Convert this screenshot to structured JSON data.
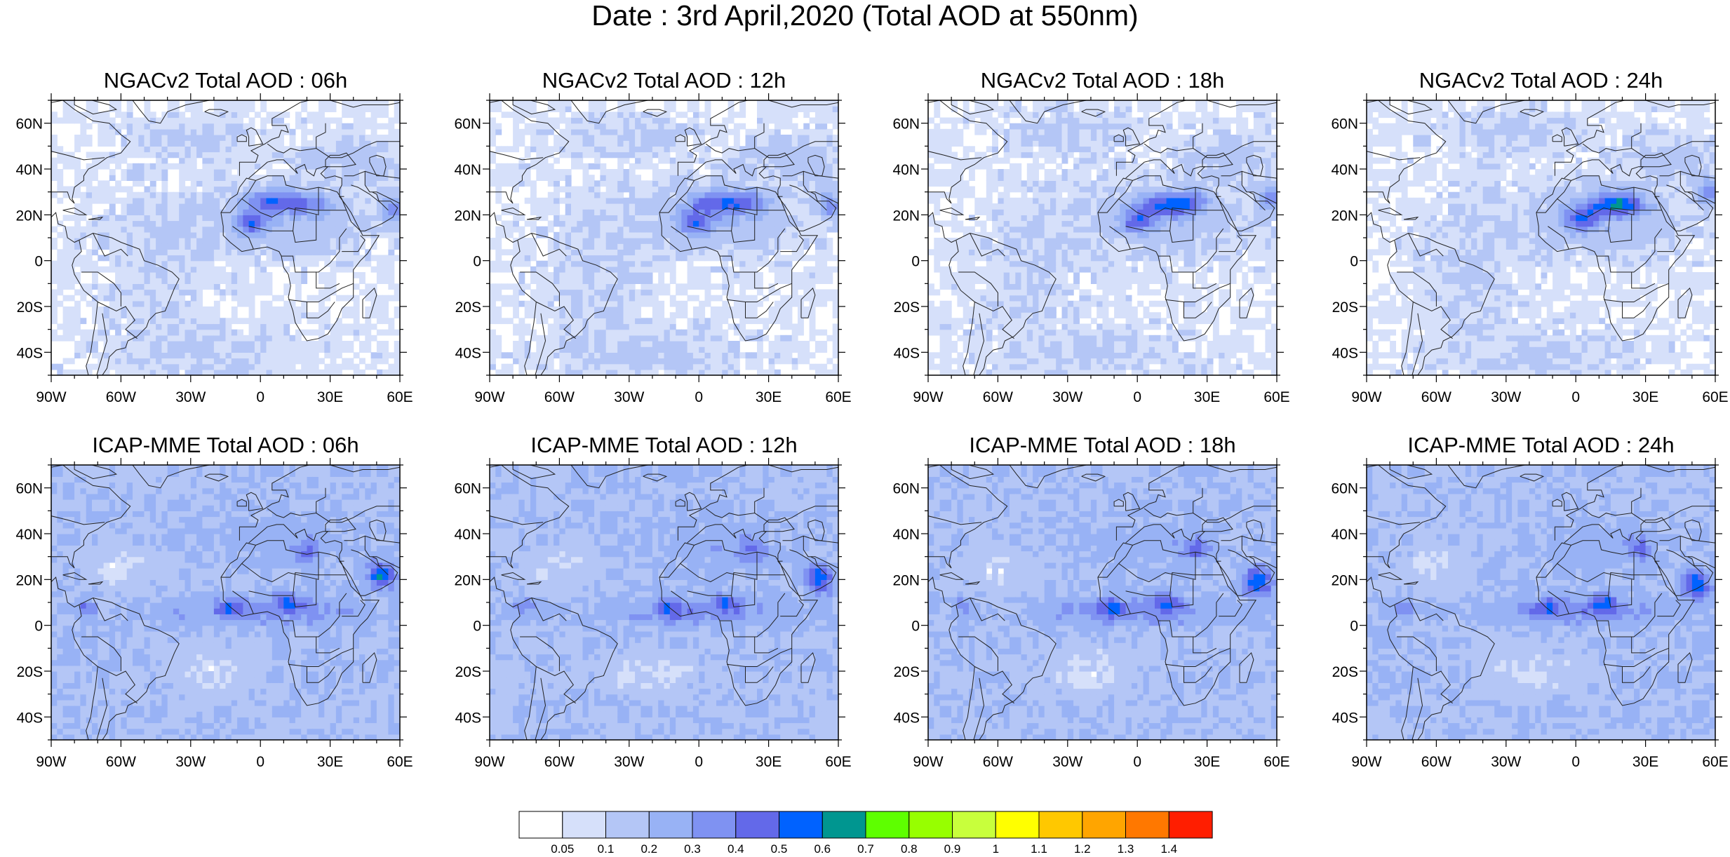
{
  "title": "Date : 3rd April,2020 (Total AOD at 550nm)",
  "panels": [
    {
      "title": "NGACv2 Total AOD : 06h",
      "model": "NGACv2",
      "hour": 6
    },
    {
      "title": "NGACv2 Total AOD : 12h",
      "model": "NGACv2",
      "hour": 12
    },
    {
      "title": "NGACv2 Total AOD : 18h",
      "model": "NGACv2",
      "hour": 18
    },
    {
      "title": "NGACv2 Total AOD : 24h",
      "model": "NGACv2",
      "hour": 24
    },
    {
      "title": "ICAP-MME Total AOD : 06h",
      "model": "ICAP-MME",
      "hour": 6
    },
    {
      "title": "ICAP-MME Total AOD : 12h",
      "model": "ICAP-MME",
      "hour": 12
    },
    {
      "title": "ICAP-MME Total AOD : 18h",
      "model": "ICAP-MME",
      "hour": 18
    },
    {
      "title": "ICAP-MME Total AOD : 24h",
      "model": "ICAP-MME",
      "hour": 24
    }
  ],
  "map": {
    "lon_range": [
      -90,
      60
    ],
    "lat_range": [
      -50,
      70
    ],
    "lon_ticks": [
      -90,
      -60,
      -30,
      0,
      30,
      60
    ],
    "lon_tick_labels": [
      "90W",
      "60W",
      "30W",
      "0",
      "30E",
      "60E"
    ],
    "lat_ticks": [
      60,
      40,
      20,
      0,
      -20,
      -40
    ],
    "lat_tick_labels": [
      "60N",
      "40N",
      "20N",
      "0",
      "20S",
      "40S"
    ]
  },
  "colorbar": {
    "colors": [
      "#ffffff",
      "#d6e0fa",
      "#b4c6f6",
      "#98b2f5",
      "#7f92f2",
      "#6369e9",
      "#0062ff",
      "#009690",
      "#5eff00",
      "#97ff00",
      "#c8ff3c",
      "#ffff00",
      "#ffc800",
      "#ffa500",
      "#ff7800",
      "#ff1e00"
    ],
    "labels": [
      "0.05",
      "0.1",
      "0.2",
      "0.3",
      "0.4",
      "0.5",
      "0.6",
      "0.7",
      "0.8",
      "0.9",
      "1",
      "1.1",
      "1.2",
      "1.3",
      "1.4"
    ]
  }
}
